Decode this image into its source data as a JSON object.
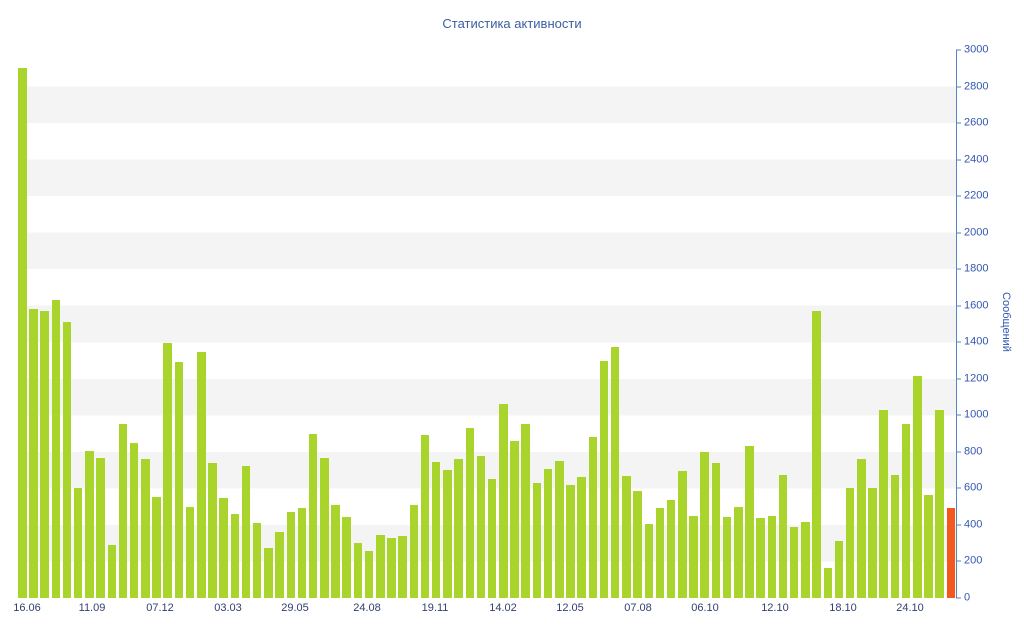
{
  "chart_data": {
    "type": "bar",
    "title": "Статистика активности",
    "ylabel": "Сообщений",
    "xlabel": "",
    "ylim": [
      0,
      3000
    ],
    "ytick_step": 200,
    "grid": "alternating horizontal bands every 200 units",
    "legend": "none",
    "x_labels": [
      "16.06",
      "11.09",
      "07.12",
      "03.03",
      "29.05",
      "24.08",
      "19.11",
      "14.02",
      "12.05",
      "07.08",
      "06.10",
      "12.10",
      "18.10",
      "24.10"
    ],
    "x_label_positions_pct": [
      0.96,
      7.89,
      15.14,
      22.39,
      29.53,
      37.21,
      44.46,
      51.71,
      58.85,
      66.1,
      73.24,
      80.7,
      87.95,
      95.1
    ],
    "values": [
      2900,
      1580,
      1570,
      1630,
      1510,
      600,
      805,
      765,
      290,
      955,
      850,
      760,
      555,
      1395,
      1290,
      500,
      1345,
      740,
      545,
      460,
      725,
      410,
      275,
      360,
      470,
      495,
      900,
      765,
      510,
      445,
      300,
      255,
      345,
      330,
      340,
      510,
      890,
      745,
      700,
      760,
      930,
      775,
      650,
      1060,
      860,
      950,
      630,
      705,
      750,
      620,
      660,
      880,
      1295,
      1375,
      670,
      585,
      405,
      495,
      535,
      695,
      450,
      800,
      740,
      445,
      500,
      830,
      440,
      450,
      675,
      390,
      415,
      1570,
      165,
      310,
      605,
      760,
      605,
      1030,
      675,
      950,
      1215,
      565,
      1030,
      495
    ],
    "highlight_bar_index": 83,
    "colors": {
      "bar": "#a8d42c",
      "highlight_bar": "#f4581c",
      "band": "#f4f4f4",
      "axis": "#5585c0",
      "title_text": "#3c5fa0",
      "y_tick_text": "#3356b0",
      "x_tick_text": "#33406e"
    }
  }
}
